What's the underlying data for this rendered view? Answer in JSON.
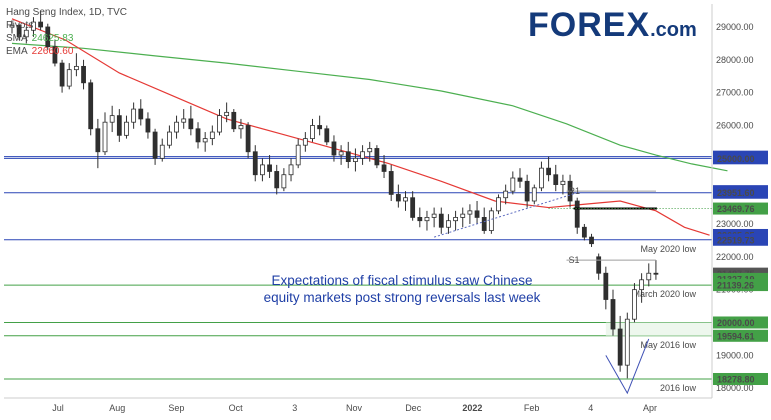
{
  "legend": {
    "title": "Hang Seng Index, 1D, TVC",
    "pivots": "Pivots",
    "sma_label": "SMA",
    "sma_value": "24625.83",
    "ema_label": "EMA",
    "ema_value": "22660.60"
  },
  "logo": {
    "brand": "FOREX",
    "suffix": ".com"
  },
  "annotation": {
    "line1": "Expectations of fiscal stimulus saw Chinese",
    "line2": "equity markets post strong reversals last week"
  },
  "colors": {
    "up": "#2f2f2f",
    "down": "#2f2f2f",
    "sma": "#4caf50",
    "ema": "#e53935",
    "blue_level": "#2a45b5",
    "green_level": "#43a047"
  },
  "chart_data": {
    "type": "candlestick",
    "title": "Hang Seng Index, 1D, TVC",
    "y_ticks": [
      18000,
      19000,
      20000,
      21000,
      22000,
      23000,
      24000,
      25000,
      26000,
      27000,
      28000,
      29000
    ],
    "y_tick_labels": [
      "18000.00",
      "19000.00",
      "20000.00",
      "21000.00",
      "22000.00",
      "23000.00",
      "24000.00",
      "25000.00",
      "26000.00",
      "27000.00",
      "28000.00",
      "29000.00"
    ],
    "x_labels": [
      "Jul",
      "Aug",
      "Sep",
      "Oct",
      "3",
      "Nov",
      "Dec",
      "2022",
      "Feb",
      "4",
      "Apr"
    ],
    "x_label_bold": "2022",
    "ylim": [
      17700,
      29700
    ],
    "sessions_visible": 194,
    "horizontal_levels": [
      {
        "value": 25050.59,
        "label": "25050.59",
        "color": "blue"
      },
      {
        "value": 25000.0,
        "label": "25000.00",
        "color": "blue"
      },
      {
        "value": 23951.6,
        "label": "23951.60",
        "color": "blue"
      },
      {
        "value": 22519.73,
        "label": "22519.73",
        "color": "blue",
        "name": "May 2020 low"
      },
      {
        "value": 21139.26,
        "label": "21139.26",
        "color": "green",
        "name": "March 2020 low"
      },
      {
        "value": 19594.61,
        "label": "19594.61",
        "color": "green",
        "name": "May 2016 low"
      },
      {
        "value": 18278.8,
        "label": "18278.80",
        "color": "green",
        "name": "2016 low"
      },
      {
        "value": 20000.0,
        "label": "20000.00",
        "color": "green"
      }
    ],
    "price_tags": [
      {
        "value": 25050.59,
        "label": "25050.59",
        "bg": "#2a45b5"
      },
      {
        "value": 25000.0,
        "label": "25000.00",
        "bg": "#2a45b5"
      },
      {
        "value": 24000.0,
        "label": "24000.00",
        "bg": "#2a45b5"
      },
      {
        "value": 23951.6,
        "label": "23951.60",
        "bg": "#2a45b5"
      },
      {
        "value": 23469.76,
        "label": "23469.76",
        "bg": "#43a047"
      },
      {
        "value": 22665.25,
        "label": "22665.25",
        "bg": "#2a45b5"
      },
      {
        "value": 22519.73,
        "label": "22519.73",
        "bg": "#2a45b5"
      },
      {
        "value": 21487.75,
        "label": "21487.75",
        "bg": "#555555"
      },
      {
        "value": 21327.19,
        "label": "21327.19",
        "bg": "#43a047"
      },
      {
        "value": 21139.26,
        "label": "21139.26",
        "bg": "#43a047"
      },
      {
        "value": 20000.0,
        "label": "20000.00",
        "bg": "#43a047"
      },
      {
        "value": 19594.61,
        "label": "19594.61",
        "bg": "#43a047"
      },
      {
        "value": 18278.8,
        "label": "18278.80",
        "bg": "#43a047"
      }
    ],
    "pivot_labels": [
      {
        "label": "R1",
        "value": 24000.0
      },
      {
        "label": "S1",
        "value": 21900.0
      }
    ],
    "series": [
      {
        "name": "SMA",
        "color": "#4caf50"
      },
      {
        "name": "EMA",
        "color": "#e53935"
      }
    ],
    "sma": [
      [
        0,
        28500
      ],
      [
        20,
        28350
      ],
      [
        40,
        28120
      ],
      [
        60,
        27900
      ],
      [
        80,
        27650
      ],
      [
        100,
        27400
      ],
      [
        120,
        27050
      ],
      [
        140,
        26600
      ],
      [
        155,
        26050
      ],
      [
        170,
        25400
      ],
      [
        180,
        25100
      ],
      [
        190,
        24830
      ],
      [
        200,
        24620
      ]
    ],
    "ema": [
      [
        0,
        29250
      ],
      [
        15,
        28600
      ],
      [
        30,
        27600
      ],
      [
        45,
        26900
      ],
      [
        60,
        26200
      ],
      [
        75,
        25750
      ],
      [
        90,
        25300
      ],
      [
        105,
        24850
      ],
      [
        120,
        24300
      ],
      [
        135,
        23700
      ],
      [
        150,
        23500
      ],
      [
        160,
        23600
      ],
      [
        170,
        23700
      ],
      [
        180,
        23400
      ],
      [
        188,
        22900
      ],
      [
        195,
        22660
      ]
    ],
    "candles": [
      {
        "t": 0,
        "o": 29000,
        "h": 29200,
        "l": 28800,
        "c": 29050
      },
      {
        "t": 2,
        "o": 29050,
        "h": 29100,
        "l": 28600,
        "c": 28700
      },
      {
        "t": 4,
        "o": 28700,
        "h": 29000,
        "l": 28500,
        "c": 28900
      },
      {
        "t": 6,
        "o": 28900,
        "h": 29300,
        "l": 28700,
        "c": 29150
      },
      {
        "t": 8,
        "o": 29150,
        "h": 29500,
        "l": 28900,
        "c": 29000
      },
      {
        "t": 10,
        "o": 29000,
        "h": 29100,
        "l": 28300,
        "c": 28400
      },
      {
        "t": 12,
        "o": 28400,
        "h": 28600,
        "l": 27800,
        "c": 27900
      },
      {
        "t": 14,
        "o": 27900,
        "h": 28000,
        "l": 27000,
        "c": 27200
      },
      {
        "t": 16,
        "o": 27200,
        "h": 27900,
        "l": 27100,
        "c": 27700
      },
      {
        "t": 18,
        "o": 27700,
        "h": 28200,
        "l": 27500,
        "c": 27800
      },
      {
        "t": 20,
        "o": 27800,
        "h": 28000,
        "l": 27100,
        "c": 27300
      },
      {
        "t": 22,
        "o": 27300,
        "h": 27400,
        "l": 25700,
        "c": 25900
      },
      {
        "t": 24,
        "o": 25900,
        "h": 26200,
        "l": 24700,
        "c": 25200
      },
      {
        "t": 26,
        "o": 25200,
        "h": 26400,
        "l": 25100,
        "c": 26100
      },
      {
        "t": 28,
        "o": 26100,
        "h": 26600,
        "l": 25800,
        "c": 26300
      },
      {
        "t": 30,
        "o": 26300,
        "h": 26500,
        "l": 25500,
        "c": 25700
      },
      {
        "t": 32,
        "o": 25700,
        "h": 26300,
        "l": 25600,
        "c": 26100
      },
      {
        "t": 34,
        "o": 26100,
        "h": 26700,
        "l": 25900,
        "c": 26500
      },
      {
        "t": 36,
        "o": 26500,
        "h": 26800,
        "l": 26000,
        "c": 26200
      },
      {
        "t": 38,
        "o": 26200,
        "h": 26400,
        "l": 25600,
        "c": 25800
      },
      {
        "t": 40,
        "o": 25800,
        "h": 25900,
        "l": 24800,
        "c": 25000
      },
      {
        "t": 42,
        "o": 25000,
        "h": 25600,
        "l": 24900,
        "c": 25400
      },
      {
        "t": 44,
        "o": 25400,
        "h": 26000,
        "l": 25300,
        "c": 25800
      },
      {
        "t": 46,
        "o": 25800,
        "h": 26300,
        "l": 25600,
        "c": 26100
      },
      {
        "t": 48,
        "o": 26100,
        "h": 26500,
        "l": 25900,
        "c": 26200
      },
      {
        "t": 50,
        "o": 26200,
        "h": 26600,
        "l": 25700,
        "c": 25900
      },
      {
        "t": 52,
        "o": 25900,
        "h": 26100,
        "l": 25300,
        "c": 25500
      },
      {
        "t": 54,
        "o": 25500,
        "h": 25800,
        "l": 25200,
        "c": 25600
      },
      {
        "t": 56,
        "o": 25600,
        "h": 26000,
        "l": 25400,
        "c": 25800
      },
      {
        "t": 58,
        "o": 25800,
        "h": 26500,
        "l": 25700,
        "c": 26300
      },
      {
        "t": 60,
        "o": 26300,
        "h": 26700,
        "l": 26100,
        "c": 26400
      },
      {
        "t": 62,
        "o": 26400,
        "h": 26500,
        "l": 25800,
        "c": 25900
      },
      {
        "t": 64,
        "o": 25900,
        "h": 26200,
        "l": 25600,
        "c": 26000
      },
      {
        "t": 66,
        "o": 26000,
        "h": 26100,
        "l": 25000,
        "c": 25200
      },
      {
        "t": 68,
        "o": 25200,
        "h": 25400,
        "l": 24300,
        "c": 24500
      },
      {
        "t": 70,
        "o": 24500,
        "h": 25000,
        "l": 24300,
        "c": 24800
      },
      {
        "t": 72,
        "o": 24800,
        "h": 25100,
        "l": 24400,
        "c": 24600
      },
      {
        "t": 74,
        "o": 24600,
        "h": 24800,
        "l": 23900,
        "c": 24100
      },
      {
        "t": 76,
        "o": 24100,
        "h": 24700,
        "l": 24000,
        "c": 24500
      },
      {
        "t": 78,
        "o": 24500,
        "h": 25000,
        "l": 24300,
        "c": 24800
      },
      {
        "t": 80,
        "o": 24800,
        "h": 25600,
        "l": 24700,
        "c": 25400
      },
      {
        "t": 82,
        "o": 25400,
        "h": 25800,
        "l": 25200,
        "c": 25600
      },
      {
        "t": 84,
        "o": 25600,
        "h": 26200,
        "l": 25500,
        "c": 26000
      },
      {
        "t": 86,
        "o": 26000,
        "h": 26300,
        "l": 25700,
        "c": 25900
      },
      {
        "t": 88,
        "o": 25900,
        "h": 26000,
        "l": 25400,
        "c": 25500
      },
      {
        "t": 90,
        "o": 25500,
        "h": 25700,
        "l": 24900,
        "c": 25100
      },
      {
        "t": 92,
        "o": 25100,
        "h": 25400,
        "l": 24800,
        "c": 25200
      },
      {
        "t": 94,
        "o": 25200,
        "h": 25500,
        "l": 24700,
        "c": 24900
      },
      {
        "t": 96,
        "o": 24900,
        "h": 25300,
        "l": 24600,
        "c": 25000
      },
      {
        "t": 98,
        "o": 25000,
        "h": 25400,
        "l": 24800,
        "c": 25200
      },
      {
        "t": 100,
        "o": 25200,
        "h": 25500,
        "l": 24900,
        "c": 25300
      },
      {
        "t": 102,
        "o": 25300,
        "h": 25400,
        "l": 24700,
        "c": 24800
      },
      {
        "t": 104,
        "o": 24800,
        "h": 25100,
        "l": 24400,
        "c": 24600
      },
      {
        "t": 106,
        "o": 24600,
        "h": 24800,
        "l": 23700,
        "c": 23900
      },
      {
        "t": 108,
        "o": 23900,
        "h": 24200,
        "l": 23500,
        "c": 23700
      },
      {
        "t": 110,
        "o": 23700,
        "h": 24000,
        "l": 23400,
        "c": 23800
      },
      {
        "t": 112,
        "o": 23800,
        "h": 24000,
        "l": 23100,
        "c": 23200
      },
      {
        "t": 114,
        "o": 23200,
        "h": 23500,
        "l": 22900,
        "c": 23100
      },
      {
        "t": 116,
        "o": 23100,
        "h": 23400,
        "l": 22800,
        "c": 23200
      },
      {
        "t": 118,
        "o": 23200,
        "h": 23500,
        "l": 22900,
        "c": 23300
      },
      {
        "t": 120,
        "o": 23300,
        "h": 23500,
        "l": 22700,
        "c": 22900
      },
      {
        "t": 122,
        "o": 22900,
        "h": 23300,
        "l": 22700,
        "c": 23100
      },
      {
        "t": 124,
        "o": 23100,
        "h": 23400,
        "l": 22800,
        "c": 23200
      },
      {
        "t": 126,
        "o": 23200,
        "h": 23500,
        "l": 22900,
        "c": 23300
      },
      {
        "t": 128,
        "o": 23300,
        "h": 23600,
        "l": 23000,
        "c": 23400
      },
      {
        "t": 130,
        "o": 23400,
        "h": 23700,
        "l": 23000,
        "c": 23200
      },
      {
        "t": 132,
        "o": 23200,
        "h": 23500,
        "l": 22700,
        "c": 22800
      },
      {
        "t": 134,
        "o": 22800,
        "h": 23500,
        "l": 22700,
        "c": 23400
      },
      {
        "t": 136,
        "o": 23400,
        "h": 23900,
        "l": 23300,
        "c": 23800
      },
      {
        "t": 138,
        "o": 23800,
        "h": 24200,
        "l": 23600,
        "c": 24000
      },
      {
        "t": 140,
        "o": 24000,
        "h": 24600,
        "l": 23900,
        "c": 24400
      },
      {
        "t": 142,
        "o": 24400,
        "h": 24700,
        "l": 24100,
        "c": 24300
      },
      {
        "t": 144,
        "o": 24300,
        "h": 24500,
        "l": 23500,
        "c": 23700
      },
      {
        "t": 146,
        "o": 23700,
        "h": 24200,
        "l": 23600,
        "c": 24100
      },
      {
        "t": 148,
        "o": 24100,
        "h": 24900,
        "l": 24000,
        "c": 24700
      },
      {
        "t": 150,
        "o": 24700,
        "h": 25050,
        "l": 24300,
        "c": 24500
      },
      {
        "t": 152,
        "o": 24500,
        "h": 24800,
        "l": 24000,
        "c": 24200
      },
      {
        "t": 154,
        "o": 24200,
        "h": 24500,
        "l": 23900,
        "c": 24300
      },
      {
        "t": 156,
        "o": 24300,
        "h": 24500,
        "l": 23500,
        "c": 23700
      },
      {
        "t": 158,
        "o": 23700,
        "h": 23800,
        "l": 22700,
        "c": 22900
      },
      {
        "t": 160,
        "o": 22900,
        "h": 23000,
        "l": 22500,
        "c": 22600
      },
      {
        "t": 162,
        "o": 22600,
        "h": 22700,
        "l": 22300,
        "c": 22400
      },
      {
        "t": 164,
        "o": 22000,
        "h": 22100,
        "l": 21300,
        "c": 21500
      },
      {
        "t": 166,
        "o": 21500,
        "h": 21700,
        "l": 20400,
        "c": 20700
      },
      {
        "t": 168,
        "o": 20700,
        "h": 21000,
        "l": 19600,
        "c": 19800
      },
      {
        "t": 170,
        "o": 19800,
        "h": 20200,
        "l": 18500,
        "c": 18700
      },
      {
        "t": 172,
        "o": 18700,
        "h": 20300,
        "l": 18300,
        "c": 20100
      },
      {
        "t": 174,
        "o": 20100,
        "h": 21200,
        "l": 20000,
        "c": 21000
      },
      {
        "t": 176,
        "o": 21000,
        "h": 21500,
        "l": 20600,
        "c": 21300
      },
      {
        "t": 178,
        "o": 21300,
        "h": 21800,
        "l": 21100,
        "c": 21500
      },
      {
        "t": 180,
        "o": 21500,
        "h": 21900,
        "l": 21300,
        "c": 21490
      }
    ]
  }
}
